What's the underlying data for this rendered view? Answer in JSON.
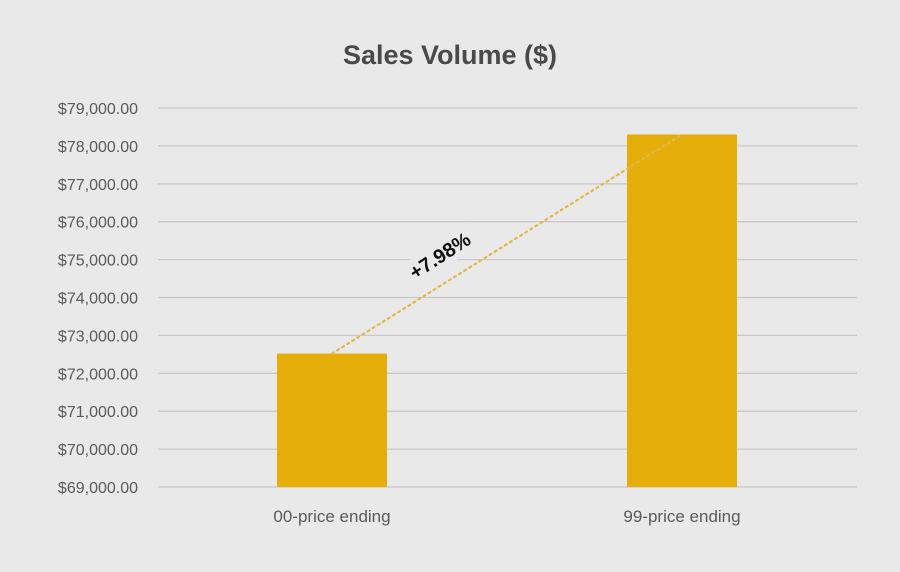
{
  "chart_data": {
    "type": "bar",
    "title": "Sales Volume ($)",
    "categories": [
      "00-price ending",
      "99-price ending"
    ],
    "values": [
      72520,
      78300
    ],
    "ylim": [
      69000,
      79000
    ],
    "yticks": [
      69000,
      70000,
      71000,
      72000,
      73000,
      74000,
      75000,
      76000,
      77000,
      78000,
      79000
    ],
    "ytick_labels": [
      "$69,000.00",
      "$70,000.00",
      "$71,000.00",
      "$72,000.00",
      "$73,000.00",
      "$74,000.00",
      "$75,000.00",
      "$76,000.00",
      "$77,000.00",
      "$78,000.00",
      "$79,000.00"
    ],
    "grid": true,
    "bar_color": "#e6ae0b",
    "annotation": {
      "text": "+7.98%",
      "style": "dotted trend line between bar tops"
    },
    "xlabel": "",
    "ylabel": ""
  }
}
